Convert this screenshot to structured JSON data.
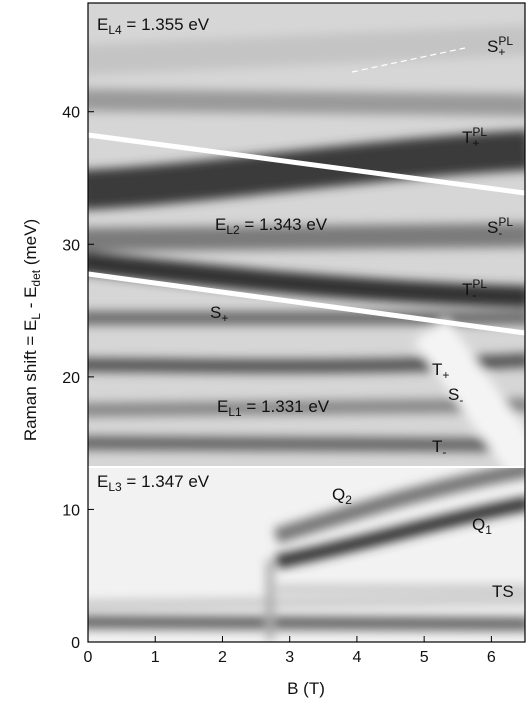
{
  "chart_data": {
    "type": "heatmap",
    "xlabel": "B (T)",
    "ylabel": [
      {
        "text": "Raman shift = E"
      },
      {
        "sub": "L"
      },
      {
        "text": " - E"
      },
      {
        "sub": "det"
      },
      {
        "text": " (meV)"
      }
    ],
    "xlim": [
      0,
      6.5
    ],
    "ylim": [
      0,
      48.2
    ],
    "xticks": [
      0,
      1,
      2,
      3,
      4,
      5,
      6
    ],
    "yticks": [
      0,
      10,
      20,
      30,
      40
    ],
    "annotations": [
      [
        {
          "text": "E"
        },
        {
          "sub": "L4"
        },
        {
          "text": " = 1.355 eV"
        }
      ],
      [
        {
          "text": "S"
        },
        {
          "sup": "PL"
        },
        {
          "sub": "+"
        }
      ],
      [
        {
          "text": "T"
        },
        {
          "sup": "PL"
        },
        {
          "sub": "+"
        }
      ],
      [
        {
          "text": "E"
        },
        {
          "sub": "L2"
        },
        {
          "text": " = 1.343 eV"
        }
      ],
      [
        {
          "text": "S"
        },
        {
          "sup": "PL"
        },
        {
          "sub": "-"
        }
      ],
      [
        {
          "text": "T"
        },
        {
          "sup": "PL"
        },
        {
          "sub": "-"
        }
      ],
      [
        {
          "text": "S"
        },
        {
          "sub": "+"
        }
      ],
      [
        {
          "text": "T"
        },
        {
          "sub": "+"
        }
      ],
      [
        {
          "text": "E"
        },
        {
          "sub": "L1"
        },
        {
          "text": " = 1.331 eV"
        }
      ],
      [
        {
          "text": "S"
        },
        {
          "sub": "-"
        }
      ],
      [
        {
          "text": "T"
        },
        {
          "sub": "-"
        }
      ],
      [
        {
          "text": "E"
        },
        {
          "sub": "L3"
        },
        {
          "text": " = 1.347 eV"
        }
      ],
      [
        {
          "text": "Q"
        },
        {
          "sub": "2"
        }
      ],
      [
        {
          "text": "Q"
        },
        {
          "sub": "1"
        }
      ],
      [
        {
          "text": "TS"
        }
      ]
    ]
  }
}
